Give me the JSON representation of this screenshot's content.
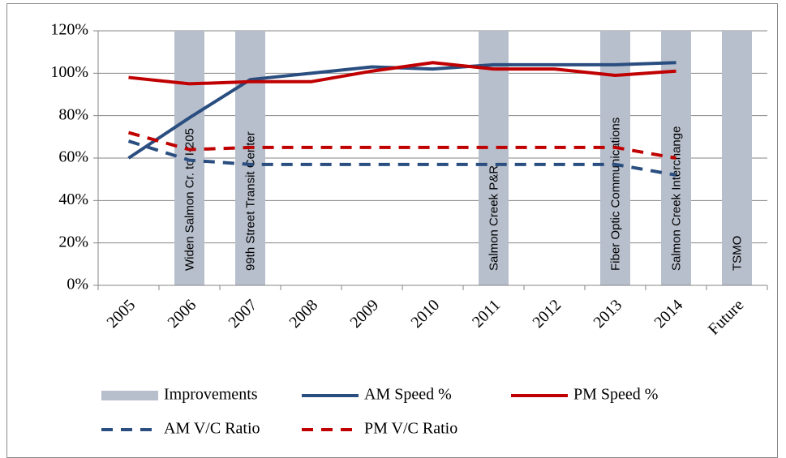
{
  "chart_data": {
    "type": "line",
    "categories": [
      "2005",
      "2006",
      "2007",
      "2008",
      "2009",
      "2010",
      "2011",
      "2012",
      "2013",
      "2014",
      "Future"
    ],
    "ylim": [
      0,
      120
    ],
    "yticks": [
      {
        "value": 0,
        "label": "0%"
      },
      {
        "value": 20,
        "label": "20%"
      },
      {
        "value": 40,
        "label": "40%"
      },
      {
        "value": 60,
        "label": "60%"
      },
      {
        "value": 80,
        "label": "80%"
      },
      {
        "value": 100,
        "label": "100%"
      },
      {
        "value": 120,
        "label": "120%"
      }
    ],
    "grid": true,
    "series": [
      {
        "name": "Improvements",
        "color": "#b8bfcc",
        "kind": "bar",
        "values": [
          null,
          120,
          120,
          null,
          null,
          null,
          120,
          null,
          120,
          120,
          120
        ],
        "labels": [
          null,
          "Widen Salmon Cr. to I-205",
          "99th Street Transit Center",
          null,
          null,
          null,
          "Salmon Creek P&R",
          null,
          "Fiber Optic Communications",
          "Salmon Creek Interchange",
          "TSMO"
        ]
      },
      {
        "name": "AM Speed %",
        "color": "#2a4e80",
        "kind": "line",
        "dashed": false,
        "values": [
          60,
          79,
          97,
          100,
          103,
          102,
          104,
          104,
          104,
          105,
          null
        ]
      },
      {
        "name": "PM Speed %",
        "color": "#c00000",
        "kind": "line",
        "dashed": false,
        "values": [
          98,
          95,
          96,
          96,
          101,
          105,
          102,
          102,
          99,
          101,
          null
        ]
      },
      {
        "name": "AM V/C Ratio",
        "color": "#2a4e80",
        "kind": "line",
        "dashed": true,
        "values": [
          68,
          59,
          57,
          57,
          57,
          57,
          57,
          57,
          57,
          52,
          null
        ]
      },
      {
        "name": "PM V/C Ratio",
        "color": "#c00000",
        "kind": "line",
        "dashed": true,
        "values": [
          72,
          64,
          65,
          65,
          65,
          65,
          65,
          65,
          65,
          60,
          null
        ]
      }
    ]
  }
}
